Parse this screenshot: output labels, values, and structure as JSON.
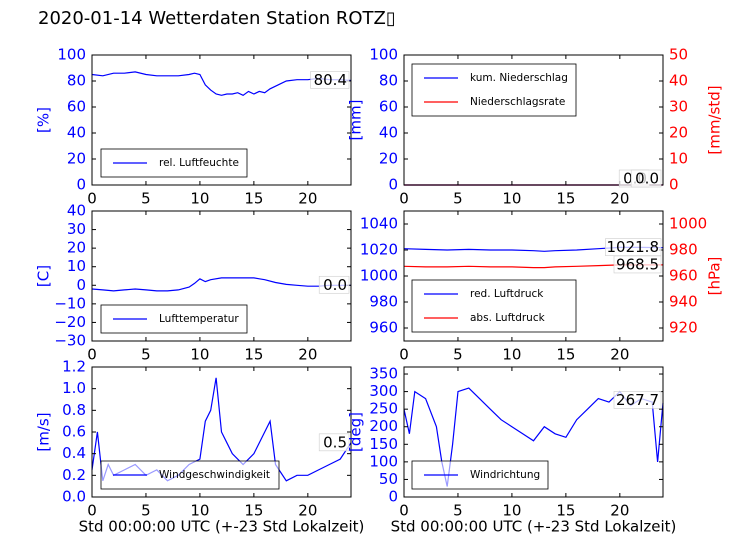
{
  "figure": {
    "title": "2020-01-14 Wetterdaten Station ROTZ▯",
    "colors": {
      "primary": "#0000ff",
      "secondary": "#ff0000",
      "axis": "#000000"
    }
  },
  "chart_data": [
    {
      "id": "humidity",
      "type": "line",
      "title": "",
      "xlabel": "",
      "ylabel": "[%]",
      "xlim": [
        0,
        24
      ],
      "ylim": [
        0,
        100
      ],
      "xticks": [
        "0",
        "5",
        "10",
        "15",
        "20"
      ],
      "yticks": [
        "0",
        "20",
        "40",
        "60",
        "80",
        "100"
      ],
      "value_label": "80.4",
      "legend": [
        "rel. Luftfeuchte"
      ],
      "legend_position": "lower-center",
      "series": [
        {
          "name": "rel. Luftfeuchte",
          "color": "#0000ff",
          "x": [
            0,
            1,
            2,
            3,
            4,
            5,
            6,
            7,
            8,
            9,
            9.5,
            10,
            10.5,
            11,
            11.5,
            12,
            12.5,
            13,
            13.5,
            14,
            14.5,
            15,
            15.5,
            16,
            16.5,
            17,
            17.5,
            18,
            19,
            20,
            21,
            22,
            23,
            24
          ],
          "y": [
            85,
            84,
            86,
            86,
            87,
            85,
            84,
            84,
            84,
            85,
            86,
            85,
            77,
            73,
            70,
            69,
            70,
            70,
            71,
            69,
            72,
            70,
            72,
            71,
            74,
            76,
            78,
            80,
            81,
            81,
            82,
            81,
            81,
            80.4
          ]
        }
      ]
    },
    {
      "id": "precipitation",
      "type": "line",
      "title": "",
      "xlabel": "",
      "ylabel": "[mm]",
      "y2label": "[mm/std]",
      "xlim": [
        0,
        24
      ],
      "ylim": [
        0,
        100
      ],
      "y2lim": [
        0,
        50
      ],
      "xticks": [
        "0",
        "5",
        "10",
        "15",
        "20"
      ],
      "yticks": [
        "0",
        "20",
        "40",
        "60",
        "80",
        "100"
      ],
      "y2ticks": [
        "0",
        "10",
        "20",
        "30",
        "40",
        "50"
      ],
      "value_labels": [
        "0.0",
        "0.0"
      ],
      "legend": [
        "kum. Niederschlag",
        "Niederschlagsrate"
      ],
      "legend_position": "upper-left",
      "series": [
        {
          "name": "kum. Niederschlag",
          "color": "#0000ff",
          "axis": "left",
          "x": [
            0,
            24
          ],
          "y": [
            0,
            0
          ]
        },
        {
          "name": "Niederschlagsrate",
          "color": "#ff0000",
          "axis": "right",
          "x": [
            0,
            24
          ],
          "y": [
            0,
            0
          ]
        }
      ]
    },
    {
      "id": "temperature",
      "type": "line",
      "title": "",
      "xlabel": "",
      "ylabel": "[C]",
      "xlim": [
        0,
        24
      ],
      "ylim": [
        -30,
        40
      ],
      "xticks": [
        "0",
        "5",
        "10",
        "15",
        "20"
      ],
      "yticks": [
        "−30",
        "−20",
        "−10",
        "0",
        "10",
        "20",
        "30",
        "40"
      ],
      "value_label": "0.0",
      "legend": [
        "Lufttemperatur"
      ],
      "legend_position": "lower-center",
      "series": [
        {
          "name": "Lufttemperatur",
          "color": "#0000ff",
          "x": [
            0,
            1,
            2,
            3,
            4,
            5,
            6,
            7,
            8,
            9,
            9.5,
            10,
            10.5,
            11,
            12,
            13,
            14,
            15,
            15.5,
            16,
            17,
            18,
            19,
            20,
            21,
            22,
            23,
            24
          ],
          "y": [
            -2,
            -2.5,
            -3,
            -2.5,
            -2,
            -2.5,
            -3,
            -3,
            -2.5,
            -1,
            1,
            3.5,
            2,
            3,
            4,
            4,
            4,
            4,
            3.5,
            3,
            1.5,
            0.5,
            0,
            -0.5,
            -0.5,
            0,
            0,
            0
          ]
        }
      ]
    },
    {
      "id": "pressure",
      "type": "line",
      "title": "",
      "xlabel": "",
      "ylabel": "",
      "y2label": "[hPa]",
      "xlim": [
        0,
        24
      ],
      "ylim": [
        950,
        1050
      ],
      "y2lim": [
        910,
        1010
      ],
      "xticks": [
        "0",
        "5",
        "10",
        "15",
        "20"
      ],
      "yticks": [
        "960",
        "980",
        "1000",
        "1020",
        "1040"
      ],
      "y2ticks": [
        "920",
        "940",
        "960",
        "980",
        "1000"
      ],
      "value_labels": [
        "1021.8",
        "968.5"
      ],
      "legend": [
        "red. Luftdruck",
        "abs. Luftdruck"
      ],
      "legend_position": "lower-left",
      "series": [
        {
          "name": "red. Luftdruck",
          "color": "#0000ff",
          "axis": "left",
          "x": [
            0,
            2,
            4,
            6,
            8,
            10,
            12,
            13,
            14,
            16,
            18,
            20,
            22,
            24
          ],
          "y": [
            1021,
            1020.5,
            1020,
            1020.5,
            1020,
            1020,
            1019.5,
            1019,
            1019.5,
            1020,
            1021,
            1022,
            1022,
            1021.8
          ]
        },
        {
          "name": "abs. Luftdruck",
          "color": "#ff0000",
          "axis": "right",
          "x": [
            0,
            2,
            4,
            6,
            8,
            10,
            12,
            13,
            14,
            16,
            18,
            20,
            22,
            24
          ],
          "y": [
            967.5,
            967,
            967,
            967.5,
            967,
            967,
            966.5,
            966.5,
            967,
            967.5,
            968,
            968.5,
            968.5,
            968.5
          ]
        }
      ]
    },
    {
      "id": "windspeed",
      "type": "line",
      "title": "",
      "xlabel": "Std 00:00:00 UTC (+-23 Std Lokalzeit)",
      "ylabel": "[m/s]",
      "xlim": [
        0,
        24
      ],
      "ylim": [
        0,
        1.2
      ],
      "xticks": [
        "0",
        "5",
        "10",
        "15",
        "20"
      ],
      "yticks": [
        "0.0",
        "0.2",
        "0.4",
        "0.6",
        "0.8",
        "1.0",
        "1.2"
      ],
      "value_label": "0.5",
      "legend": [
        "Windgeschwindigkeit"
      ],
      "legend_position": "lower-center",
      "series": [
        {
          "name": "Windgeschwindigkeit",
          "color": "#0000ff",
          "x": [
            0,
            0.5,
            1,
            1.5,
            2,
            3,
            4,
            5,
            6,
            7,
            8,
            9,
            10,
            10.5,
            11,
            11.5,
            12,
            12.5,
            13,
            14,
            15,
            16,
            16.5,
            17,
            18,
            19,
            20,
            21,
            22,
            23,
            24
          ],
          "y": [
            0.25,
            0.6,
            0.15,
            0.3,
            0.2,
            0.25,
            0.3,
            0.2,
            0.25,
            0.15,
            0.2,
            0.3,
            0.35,
            0.7,
            0.8,
            1.1,
            0.6,
            0.5,
            0.4,
            0.3,
            0.4,
            0.6,
            0.7,
            0.3,
            0.15,
            0.2,
            0.2,
            0.25,
            0.3,
            0.35,
            0.5
          ]
        }
      ]
    },
    {
      "id": "winddirection",
      "type": "line",
      "title": "",
      "xlabel": "Std 00:00:00 UTC (+-23 Std Lokalzeit)",
      "ylabel": "[deg]",
      "xlim": [
        0,
        24
      ],
      "ylim": [
        0,
        370
      ],
      "xticks": [
        "0",
        "5",
        "10",
        "15",
        "20"
      ],
      "yticks": [
        "0",
        "50",
        "100",
        "150",
        "200",
        "250",
        "300",
        "350"
      ],
      "value_label": "267.7",
      "legend": [
        "Windrichtung"
      ],
      "legend_position": "lower-left",
      "series": [
        {
          "name": "Windrichtung",
          "color": "#0000ff",
          "x": [
            0,
            0.5,
            1,
            2,
            3,
            3.5,
            4,
            4.5,
            5,
            6,
            7,
            8,
            9,
            10,
            11,
            12,
            13,
            14,
            15,
            16,
            17,
            18,
            19,
            20,
            21,
            22,
            23,
            23.5,
            24
          ],
          "y": [
            250,
            180,
            300,
            280,
            200,
            100,
            30,
            150,
            300,
            310,
            280,
            250,
            220,
            200,
            180,
            160,
            200,
            180,
            170,
            220,
            250,
            280,
            270,
            300,
            260,
            280,
            270,
            100,
            267.7
          ]
        }
      ]
    }
  ]
}
